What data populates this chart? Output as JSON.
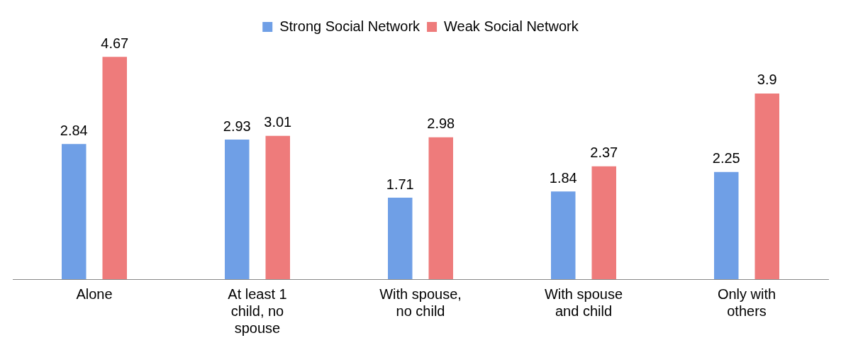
{
  "chart_data": {
    "type": "bar",
    "categories": [
      "Alone",
      "At least 1 child, no spouse",
      "With spouse, no child",
      "With spouse and child",
      "Only with others"
    ],
    "series": [
      {
        "name": "Strong Social Network",
        "color": "#6f9fe6",
        "values": [
          2.84,
          2.93,
          1.71,
          1.84,
          2.25
        ]
      },
      {
        "name": "Weak Social Network",
        "color": "#ee7b7b",
        "values": [
          4.67,
          3.01,
          2.98,
          2.37,
          3.9
        ]
      }
    ],
    "data_labels": true,
    "legend": "top",
    "grid": false
  }
}
